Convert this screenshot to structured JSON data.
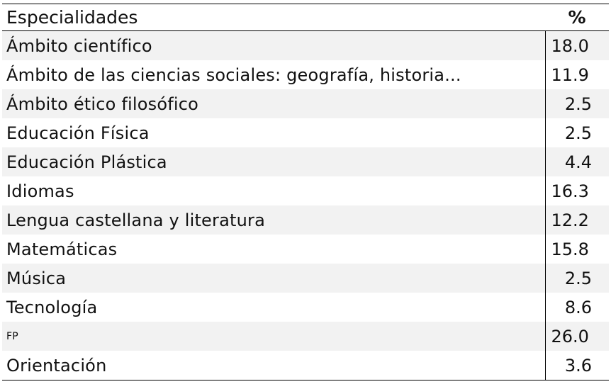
{
  "table": {
    "header": {
      "name": "Especialidades",
      "pct": "%"
    },
    "rows": [
      {
        "name": "Ámbito científico",
        "pct": "18.0"
      },
      {
        "name": "Ámbito de las ciencias sociales: geografía, historia...",
        "pct": "11.9"
      },
      {
        "name": "Ámbito ético filosófico",
        "pct": "2.5"
      },
      {
        "name": "Educación Física",
        "pct": "2.5"
      },
      {
        "name": "Educación Plástica",
        "pct": "4.4"
      },
      {
        "name": "Idiomas",
        "pct": "16.3"
      },
      {
        "name": "Lengua castellana y literatura",
        "pct": "12.2"
      },
      {
        "name": "Matemáticas",
        "pct": "15.8"
      },
      {
        "name": "Música",
        "pct": "2.5"
      },
      {
        "name": "Tecnología",
        "pct": "8.6"
      },
      {
        "name": "FP",
        "pct": "26.0"
      },
      {
        "name": "Orientación",
        "pct": "3.6"
      }
    ]
  }
}
